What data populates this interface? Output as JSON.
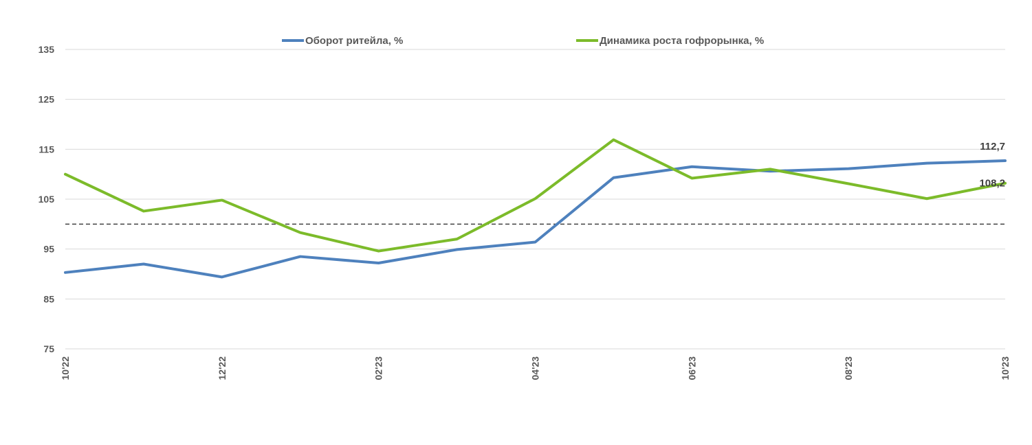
{
  "chart_data": {
    "type": "line",
    "title": "",
    "xlabel": "",
    "ylabel": "",
    "x": [
      "10'22",
      "11'22",
      "12'22",
      "01'23",
      "02'23",
      "03'23",
      "04'23",
      "05'23",
      "06'23",
      "07'23",
      "08'23",
      "09'23",
      "10'23"
    ],
    "x_tick_labels": [
      "10'22",
      "12'22",
      "02'23",
      "04'23",
      "06'23",
      "08'23",
      "10'23"
    ],
    "y_ticks": [
      75,
      85,
      95,
      105,
      115,
      125,
      135
    ],
    "ylim": [
      75,
      135
    ],
    "grid": "horizontal",
    "reference_line": 100,
    "legend_position": "top",
    "series": [
      {
        "name": "Оборот ритейла, %",
        "color": "#4E81BD",
        "values": [
          90.3,
          92.0,
          89.4,
          93.5,
          92.2,
          94.9,
          96.4,
          109.3,
          111.5,
          110.6,
          111.1,
          112.2,
          112.7
        ]
      },
      {
        "name": "Динамика роста гофрорынка, %",
        "color": "#7CBB2A",
        "values": [
          110.0,
          102.6,
          104.8,
          98.3,
          94.6,
          97.0,
          105.1,
          116.9,
          109.2,
          111.0,
          108.1,
          105.1,
          108.2
        ]
      }
    ],
    "data_labels": [
      "112,7",
      "108,2"
    ]
  }
}
